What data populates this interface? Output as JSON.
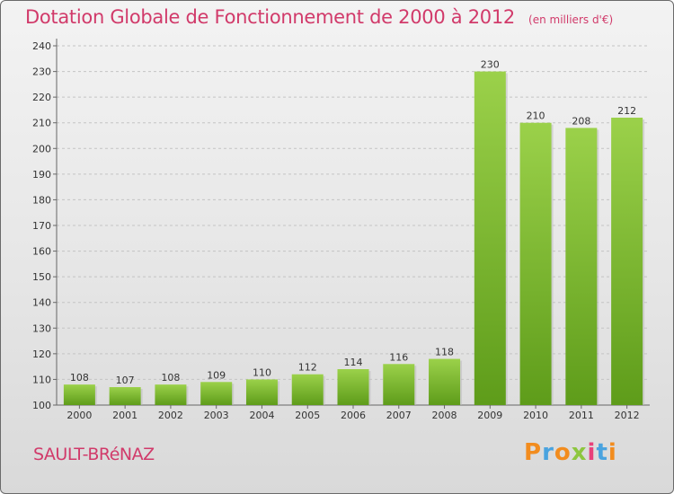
{
  "header": {
    "title": "Dotation Globale de Fonctionnement de 2000 à 2012",
    "subtitle": "(en milliers d'€)"
  },
  "footer": {
    "commune": "SAULT-BRéNAZ",
    "logo_letters": [
      "P",
      "r",
      "o",
      "x",
      "i",
      "t",
      "i"
    ],
    "logo_colors": [
      "#f28c1e",
      "#4aa3df",
      "#f28c1e",
      "#8dc63f",
      "#e8417a",
      "#4aa3df",
      "#f28c1e"
    ]
  },
  "colors": {
    "bar_top": "#9bd14a",
    "bar_bottom": "#5e9c1a",
    "title": "#d13a6a"
  },
  "chart_data": {
    "type": "bar",
    "title": "Dotation Globale de Fonctionnement de 2000 à 2012",
    "subtitle": "(en milliers d'€)",
    "categories": [
      "2000",
      "2001",
      "2002",
      "2003",
      "2004",
      "2005",
      "2006",
      "2007",
      "2008",
      "2009",
      "2010",
      "2011",
      "2012"
    ],
    "values": [
      108,
      107,
      108,
      109,
      110,
      112,
      114,
      116,
      118,
      230,
      210,
      208,
      212
    ],
    "ylim": [
      100,
      240
    ],
    "yticks": [
      100,
      110,
      120,
      130,
      140,
      150,
      160,
      170,
      180,
      190,
      200,
      210,
      220,
      230,
      240
    ],
    "grid": true,
    "legend": "none"
  }
}
